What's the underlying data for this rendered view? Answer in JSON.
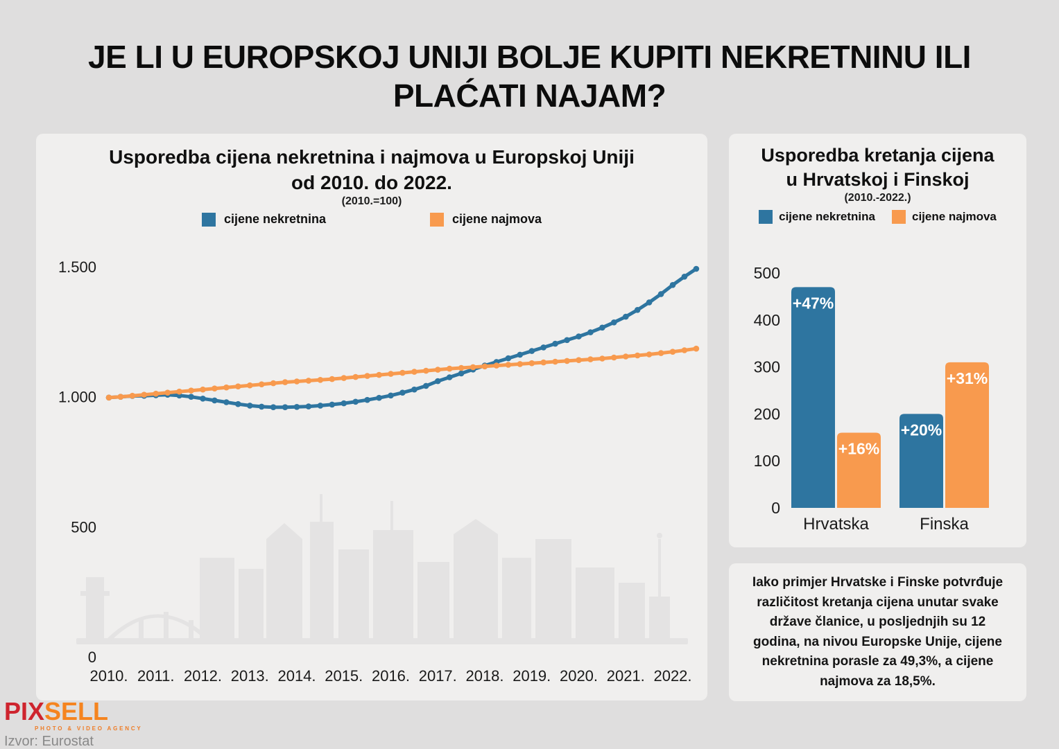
{
  "page": {
    "title_lines": [
      "JE LI U EUROPSKOJ UNIJI BOLJE KUPITI NEKRETNINU ILI",
      "PLAĆATI NAJAM?"
    ]
  },
  "colors": {
    "nekretnine_blue": "#2e75a0",
    "najmovi_orange": "#f89a4e",
    "page_bg": "#dfdede",
    "panel_bg": "#f0efee",
    "skyline_gray": "#e4e3e3"
  },
  "chart_data": [
    {
      "type": "line",
      "title_lines": [
        "Usporedba cijena nekretnina i najmova u Europskoj Uniji",
        "od 2010. do 2022."
      ],
      "subtitle": "(2010.=100)",
      "legend_position": "top",
      "grid": false,
      "ylim": [
        0,
        1500
      ],
      "y_ticks": [
        [
          0,
          "0"
        ],
        [
          500,
          "500"
        ],
        [
          1000,
          "1.000"
        ],
        [
          1500,
          "1.500"
        ]
      ],
      "x_tick_labels": [
        "2010.",
        "2011.",
        "2012.",
        "2013.",
        "2014.",
        "2015.",
        "2016.",
        "2017.",
        "2018.",
        "2019.",
        "2020.",
        "2021.",
        "2022."
      ],
      "points_per_year": 4,
      "x_start_year": 2010,
      "series": [
        {
          "name": "cijene nekretnina",
          "color": "#2e75a0",
          "values": [
            997,
            1000,
            1003,
            1004,
            1006,
            1008,
            1005,
            1000,
            993,
            986,
            979,
            972,
            966,
            962,
            960,
            960,
            961,
            963,
            966,
            970,
            975,
            981,
            988,
            996,
            1005,
            1016,
            1028,
            1042,
            1060,
            1075,
            1090,
            1105,
            1120,
            1134,
            1148,
            1162,
            1176,
            1190,
            1204,
            1218,
            1232,
            1248,
            1266,
            1286,
            1308,
            1334,
            1363,
            1395,
            1430,
            1462,
            1492
          ]
        },
        {
          "name": "cijene najmova",
          "color": "#f89a4e",
          "values": [
            997,
            1000,
            1004,
            1008,
            1012,
            1016,
            1020,
            1024,
            1028,
            1032,
            1036,
            1040,
            1044,
            1048,
            1052,
            1056,
            1059,
            1062,
            1065,
            1068,
            1072,
            1076,
            1080,
            1084,
            1088,
            1092,
            1096,
            1100,
            1104,
            1108,
            1111,
            1114,
            1117,
            1120,
            1123,
            1126,
            1129,
            1132,
            1135,
            1138,
            1141,
            1144,
            1147,
            1151,
            1155,
            1159,
            1163,
            1168,
            1173,
            1179,
            1185
          ]
        }
      ]
    },
    {
      "type": "bar",
      "title_lines": [
        "Usporedba kretanja cijena",
        "u Hrvatskoj i Finskoj"
      ],
      "subtitle": "(2010.-2022.)",
      "legend_position": "top",
      "grid": false,
      "categories": [
        "Hrvatska",
        "Finska"
      ],
      "ylim": [
        0,
        500
      ],
      "y_ticks": [
        [
          0,
          "0"
        ],
        [
          100,
          "100"
        ],
        [
          200,
          "200"
        ],
        [
          300,
          "300"
        ],
        [
          400,
          "400"
        ],
        [
          500,
          "500"
        ]
      ],
      "series": [
        {
          "name": "cijene nekretnina",
          "color": "#2e75a0",
          "values": [
            470,
            200
          ],
          "labels": [
            "+47%",
            "+20%"
          ]
        },
        {
          "name": "cijene najmova",
          "color": "#f89a4e",
          "values": [
            160,
            310
          ],
          "labels": [
            "+16%",
            "+31%"
          ]
        }
      ]
    }
  ],
  "note": {
    "text": "Iako primjer Hrvatske i Finske potvrđuje različitost kretanja cijena unutar svake države članice, u posljednjih su 12 godina, na nivou Europske Unije, cijene nekretnina porasle za 49,3%, a cijene najmova za 18,5%."
  },
  "footer": {
    "logo_part1": "PIX",
    "logo_part2": "SELL",
    "logo_tagline": "PHOTO & VIDEO AGENCY",
    "source": "Izvor: Eurostat"
  }
}
